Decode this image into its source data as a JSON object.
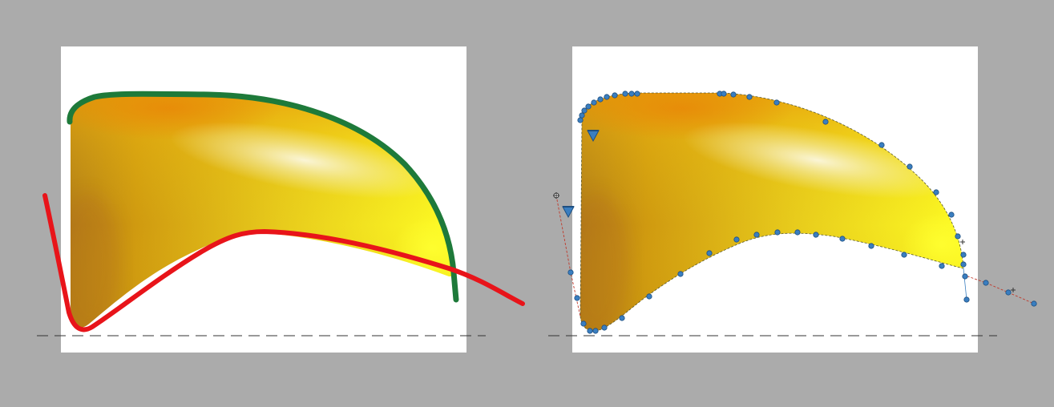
{
  "colors": {
    "background": "#ababab",
    "canvas": "#ffffff",
    "upper_curve": "#1e7a3a",
    "lower_curve": "#e8141a",
    "control_point": "#3a7ec0",
    "guide_line": "#c0392b",
    "baseline": "#333333",
    "fill_dark": "#c98a12",
    "fill_mid": "#e5c51a",
    "fill_bright": "#ffff20",
    "highlight": "#f8f3d6"
  },
  "panels": [
    {
      "name": "sketch-panel",
      "style": "freehand-curves"
    },
    {
      "name": "vector-panel",
      "style": "bezier-nodes"
    }
  ],
  "icons": [
    "node-marker-icon",
    "direction-triangle-icon",
    "crosshair-handle-icon"
  ]
}
